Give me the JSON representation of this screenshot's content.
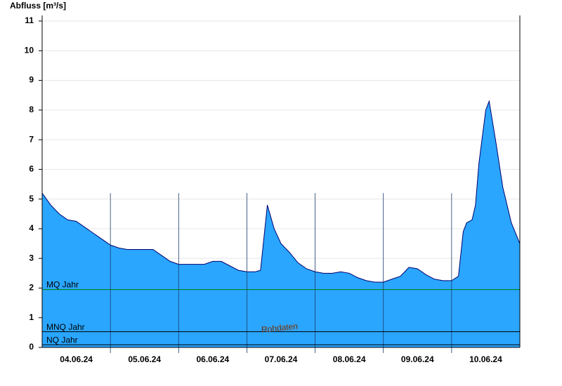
{
  "chart_data": {
    "type": "area",
    "y_label": "Abfluss [m³/s]",
    "watermark": "Rohdaten",
    "color": "#2aa6ff",
    "line_color": "#00006e",
    "xlim": [
      0,
      7
    ],
    "xticks": [
      {
        "value": 0.5,
        "label": "04.06.24"
      },
      {
        "value": 1.5,
        "label": "05.06.24"
      },
      {
        "value": 2.5,
        "label": "06.06.24"
      },
      {
        "value": 3.5,
        "label": "07.06.24"
      },
      {
        "value": 4.5,
        "label": "08.06.24"
      },
      {
        "value": 5.5,
        "label": "09.06.24"
      },
      {
        "value": 6.5,
        "label": "10.06.24"
      }
    ],
    "xgrid": [
      1,
      2,
      3,
      4,
      5,
      6
    ],
    "ylim": [
      0,
      11
    ],
    "yticks": [
      0,
      1,
      2,
      3,
      4,
      5,
      6,
      7,
      8,
      9,
      10,
      11
    ],
    "grid": true,
    "x": [
      0,
      0.125,
      0.25,
      0.375,
      0.5,
      0.625,
      0.75,
      0.875,
      1.0,
      1.125,
      1.25,
      1.375,
      1.5,
      1.625,
      1.75,
      1.875,
      2.0,
      2.125,
      2.25,
      2.375,
      2.5,
      2.625,
      2.75,
      2.875,
      3.0,
      3.125,
      3.2,
      3.3,
      3.4,
      3.5,
      3.625,
      3.75,
      3.875,
      4.0,
      4.125,
      4.25,
      4.375,
      4.5,
      4.625,
      4.75,
      4.875,
      5.0,
      5.125,
      5.25,
      5.375,
      5.5,
      5.625,
      5.75,
      5.875,
      6.0,
      6.1,
      6.17,
      6.22,
      6.3,
      6.35,
      6.4,
      6.5,
      6.55,
      6.65,
      6.75,
      6.875,
      7.0
    ],
    "values": [
      5.2,
      4.8,
      4.5,
      4.3,
      4.25,
      4.05,
      3.85,
      3.65,
      3.45,
      3.35,
      3.3,
      3.3,
      3.3,
      3.3,
      3.1,
      2.9,
      2.8,
      2.8,
      2.8,
      2.8,
      2.9,
      2.9,
      2.75,
      2.6,
      2.55,
      2.55,
      2.6,
      4.8,
      4.0,
      3.5,
      3.2,
      2.85,
      2.65,
      2.55,
      2.5,
      2.5,
      2.55,
      2.5,
      2.35,
      2.25,
      2.2,
      2.2,
      2.3,
      2.4,
      2.7,
      2.65,
      2.45,
      2.3,
      2.25,
      2.25,
      2.4,
      3.9,
      4.2,
      4.3,
      4.8,
      6.2,
      8.0,
      8.3,
      6.9,
      5.4,
      4.2,
      3.5
    ],
    "hlines": [
      {
        "label": "MQ Jahr",
        "value": 1.95,
        "color": "#008000"
      },
      {
        "label": "MNQ Jahr",
        "value": 0.53,
        "color": "#000000"
      },
      {
        "label": "NQ Jahr",
        "value": 0.09,
        "color": "#000000"
      }
    ]
  }
}
